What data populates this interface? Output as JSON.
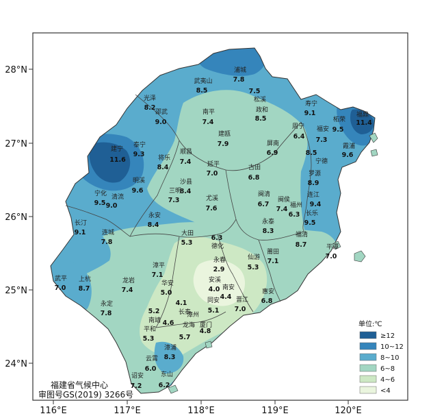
{
  "legend": {
    "title": "单位:℃",
    "items": [
      {
        "label": "≥12",
        "color": "#1f5f95"
      },
      {
        "label": "10~12",
        "color": "#3585bb"
      },
      {
        "label": "8~10",
        "color": "#5aaccd"
      },
      {
        "label": "6~8",
        "color": "#a2d6c2"
      },
      {
        "label": "4~6",
        "color": "#cde8c4"
      },
      {
        "label": "<4",
        "color": "#eaf5de"
      }
    ]
  },
  "axes": {
    "lat_ticks": [
      "28°N",
      "27°N",
      "26°N",
      "25°N",
      "24°N"
    ],
    "lon_ticks": [
      "116°E",
      "117°E",
      "118°E",
      "119°E",
      "120°E"
    ]
  },
  "credit": {
    "line1": "福建省气候中心",
    "line2": "审图号GS(2019) 3266号"
  },
  "stations": [
    {
      "name": "浦城",
      "value": "7.8"
    },
    {
      "name": "武夷山",
      "value": "8.5"
    },
    {
      "name": "松溪",
      "value": "7.5"
    },
    {
      "name": "光泽",
      "value": "8.2"
    },
    {
      "name": "政和",
      "value": "8.5"
    },
    {
      "name": "寿宁",
      "value": "9.1"
    },
    {
      "name": "邵武",
      "value": "9.0"
    },
    {
      "name": "南平",
      "value": "7.4"
    },
    {
      "name": "周宁",
      "value": "6.4"
    },
    {
      "name": "福安",
      "value": "7.3"
    },
    {
      "name": "柘荣",
      "value": "9.5"
    },
    {
      "name": "福鼎",
      "value": "11.4"
    },
    {
      "name": "建瓯",
      "value": "7.9"
    },
    {
      "name": "霞浦",
      "value": "9.6"
    },
    {
      "name": "建宁",
      "value": "11.6"
    },
    {
      "name": "泰宁",
      "value": "9.3"
    },
    {
      "name": "顺昌",
      "value": "7.4"
    },
    {
      "name": "屏南",
      "value": "6.9"
    },
    {
      "name": "宁德",
      "value": "8.5"
    },
    {
      "name": "将乐",
      "value": "8.4"
    },
    {
      "name": "延平",
      "value": "7.0"
    },
    {
      "name": "古田",
      "value": "6.8"
    },
    {
      "name": "罗源",
      "value": "8.9"
    },
    {
      "name": "明溪",
      "value": "9.6"
    },
    {
      "name": "沙县",
      "value": "8.4"
    },
    {
      "name": "三明",
      "value": "7.3"
    },
    {
      "name": "连江",
      "value": "9.4"
    },
    {
      "name": "宁化",
      "value": "9.5"
    },
    {
      "name": "清流",
      "value": "9.0"
    },
    {
      "name": "尤溪",
      "value": "7.6"
    },
    {
      "name": "闽清",
      "value": "6.7"
    },
    {
      "name": "闽侯",
      "value": "7.4"
    },
    {
      "name": "福州",
      "value": "6.3"
    },
    {
      "name": "长乐",
      "value": "9.5"
    },
    {
      "name": "长汀",
      "value": "9.1"
    },
    {
      "name": "永安",
      "value": "8.4"
    },
    {
      "name": "永泰",
      "value": "8.3"
    },
    {
      "name": "连城",
      "value": "7.8"
    },
    {
      "name": "大田",
      "value": "5.3"
    },
    {
      "name": "德化",
      "value": "6.3"
    },
    {
      "name": "福清",
      "value": "8.7"
    },
    {
      "name": "平潭",
      "value": "7.0"
    },
    {
      "name": "莆田",
      "value": "7.1"
    },
    {
      "name": "永春",
      "value": "2.9"
    },
    {
      "name": "仙游",
      "value": "5.3"
    },
    {
      "name": "漳平",
      "value": "7.1"
    },
    {
      "name": "武平",
      "value": "7.0"
    },
    {
      "name": "上杭",
      "value": "8.7"
    },
    {
      "name": "龙岩",
      "value": "7.4"
    },
    {
      "name": "安溪",
      "value": "4.0"
    },
    {
      "name": "华安",
      "value": "5.0"
    },
    {
      "name": "南安",
      "value": "4.4"
    },
    {
      "name": "晋江",
      "value": "7.0"
    },
    {
      "name": "惠安",
      "value": "6.8"
    },
    {
      "name": "永定",
      "value": "7.8"
    },
    {
      "name": "长泰",
      "value": "4.1"
    },
    {
      "name": "同安",
      "value": "5.1"
    },
    {
      "name": "南靖",
      "value": "4.6"
    },
    {
      "name": "漳州",
      "value": "5.2"
    },
    {
      "name": "厦门",
      "value": "4.8"
    },
    {
      "name": "平和",
      "value": "5.3"
    },
    {
      "name": "龙海",
      "value": "5.7"
    },
    {
      "name": "漳浦",
      "value": "8.3"
    },
    {
      "name": "云霄",
      "value": "6.0"
    },
    {
      "name": "诏安",
      "value": "7.2"
    },
    {
      "name": "东山",
      "value": "6.2"
    }
  ]
}
